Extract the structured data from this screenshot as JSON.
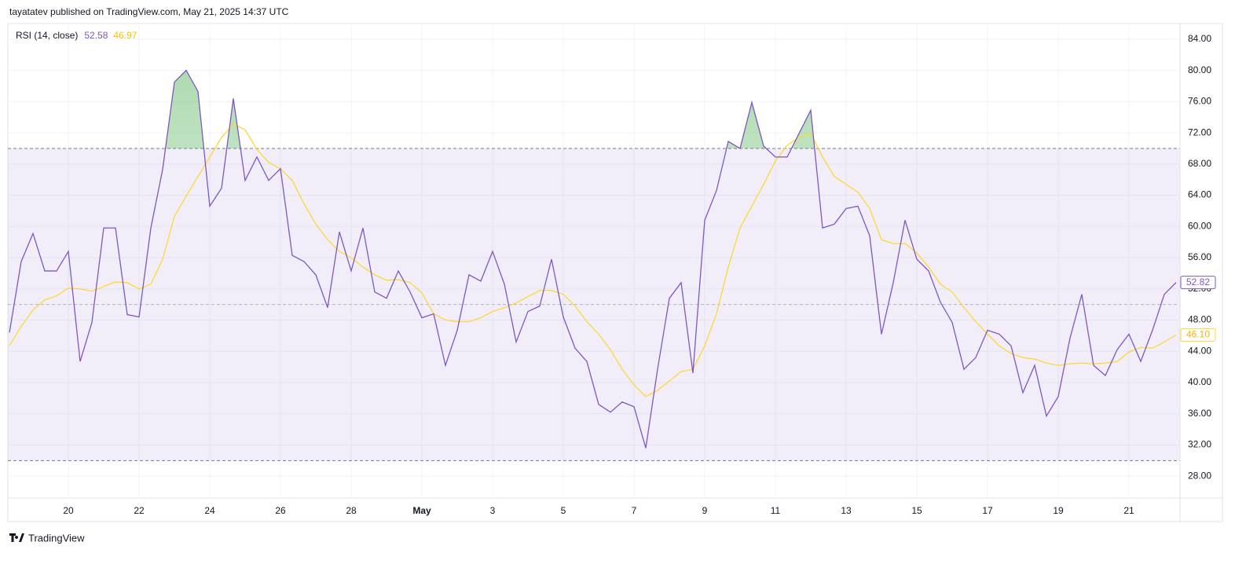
{
  "header": {
    "publisher": "tayatatev published on TradingView.com, May 21, 2025 14:37 UTC",
    "brand": "TradingView"
  },
  "chart_data": {
    "type": "line",
    "indicator": "RSI (14, close)",
    "categories": [
      null,
      null,
      null,
      null,
      null,
      "20",
      null,
      null,
      null,
      null,
      null,
      "22",
      null,
      null,
      null,
      null,
      null,
      "24",
      null,
      null,
      null,
      null,
      null,
      "26",
      null,
      null,
      null,
      null,
      null,
      "28",
      null,
      null,
      null,
      null,
      null,
      "May",
      null,
      null,
      null,
      null,
      null,
      "3",
      null,
      null,
      null,
      null,
      null,
      "5",
      null,
      null,
      null,
      null,
      null,
      "7",
      null,
      null,
      null,
      null,
      null,
      "9",
      null,
      null,
      null,
      null,
      null,
      "11",
      null,
      null,
      null,
      null,
      null,
      "13",
      null,
      null,
      null,
      null,
      null,
      "15",
      null,
      null,
      null,
      null,
      null,
      "17",
      null,
      null,
      null,
      null,
      null,
      "19",
      null,
      null,
      null,
      null,
      null,
      "21",
      null,
      null,
      null,
      null
    ],
    "series": [
      {
        "color": "#7e57c2",
        "legend_value": 52.58,
        "last_value_label": "52.82",
        "values": [
          46.4,
          55.5,
          59.1,
          54.3,
          54.3,
          56.8,
          42.7,
          47.7,
          59.8,
          59.8,
          48.7,
          48.4,
          59.8,
          67.3,
          78.5,
          80,
          77.3,
          62.6,
          64.9,
          76.4,
          65.9,
          68.9,
          65.9,
          67.4,
          56.3,
          55.5,
          53.8,
          49.6,
          59.3,
          54.3,
          59.8,
          51.6,
          50.8,
          54.3,
          51.6,
          48.3,
          48.8,
          42.2,
          46.7,
          53.8,
          53,
          56.8,
          52.6,
          45.2,
          49.1,
          49.8,
          55.8,
          48.4,
          44.4,
          42.7,
          37.2,
          36.2,
          37.5,
          36.9,
          31.6,
          41.7,
          50.8,
          52.8,
          41.2,
          60.8,
          64.6,
          70.9,
          70,
          75.9,
          70.3,
          68.9,
          68.9,
          71.9,
          74.9,
          59.8,
          60.3,
          62.3,
          62.6,
          58.8,
          46.2,
          52.8,
          60.8,
          55.8,
          54.3,
          50.3,
          47.7,
          41.7,
          43.2,
          46.7,
          46.2,
          44.7,
          38.7,
          42.2,
          35.7,
          38.2,
          45.7,
          51.3,
          42.2,
          40.9,
          44.2,
          46.2,
          42.7,
          46.7,
          51.3,
          52.82
        ]
      },
      {
        "color": "#fdd835",
        "legend_value": 46.97,
        "last_value_label": "46.10",
        "values": [
          44.7,
          47.2,
          49.3,
          50.6,
          51.1,
          52.1,
          52,
          51.7,
          52.3,
          52.9,
          52.8,
          52,
          52.6,
          55.8,
          61.3,
          63.9,
          66.4,
          68.9,
          71.4,
          73.1,
          72.4,
          69.9,
          68.2,
          67.4,
          65.9,
          62.9,
          60.3,
          58.3,
          56.8,
          56,
          54.8,
          53.8,
          53.1,
          53.2,
          52.8,
          51.5,
          48.8,
          48,
          47.8,
          47.8,
          48.3,
          49.1,
          49.6,
          50.2,
          51,
          51.8,
          51.8,
          51.3,
          49.8,
          47.8,
          46.2,
          44.2,
          41.7,
          39.7,
          38.2,
          39,
          40.2,
          41.4,
          41.7,
          44.7,
          48.8,
          54.8,
          59.8,
          62.6,
          65.4,
          68.4,
          70.4,
          71.4,
          71.9,
          68.9,
          66.4,
          65.4,
          64.4,
          62.3,
          58.3,
          57.8,
          57.8,
          56.6,
          54.8,
          52.6,
          51.6,
          49.6,
          47.8,
          46.2,
          44.7,
          43.7,
          43.2,
          43,
          42.5,
          42.2,
          42.4,
          42.5,
          42.4,
          42.5,
          42.7,
          43.9,
          44.5,
          44.4,
          45.2,
          46.1
        ]
      }
    ],
    "bands": {
      "upper": 70,
      "middle": 50,
      "lower": 30,
      "fill": "#7e57c2",
      "overbought_fill": "#4caf50"
    },
    "ylim": [
      25.2,
      86
    ],
    "yticks": [
      {
        "value": 28,
        "label": "28.00"
      },
      {
        "value": 32,
        "label": "32.00"
      },
      {
        "value": 36,
        "label": "36.00"
      },
      {
        "value": 40,
        "label": "40.00"
      },
      {
        "value": 44,
        "label": "44.00"
      },
      {
        "value": 48,
        "label": "48.00"
      },
      {
        "value": 52,
        "label": "52.00"
      },
      {
        "value": 56,
        "label": "56.00"
      },
      {
        "value": 60,
        "label": "60.00"
      },
      {
        "value": 64,
        "label": "64.00"
      },
      {
        "value": 68,
        "label": "68.00"
      },
      {
        "value": 72,
        "label": "72.00"
      },
      {
        "value": 76,
        "label": "76.00"
      },
      {
        "value": 80,
        "label": "80.00"
      },
      {
        "value": 84,
        "label": "84.00"
      }
    ],
    "grid": true
  }
}
